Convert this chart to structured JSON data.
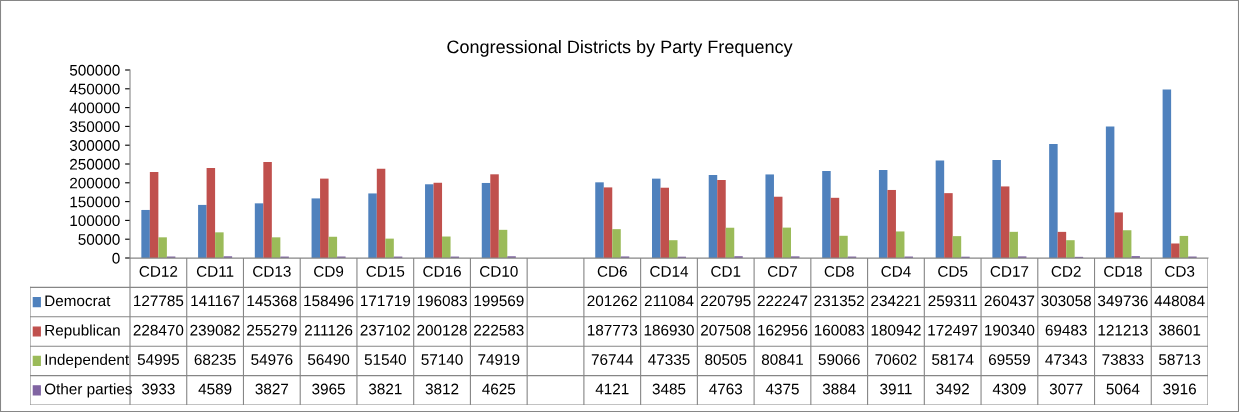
{
  "chart_data": {
    "type": "bar",
    "title": "Congressional Districts by Party Frequency",
    "categories": [
      "CD12",
      "CD11",
      "CD13",
      "CD9",
      "CD15",
      "CD16",
      "CD10",
      null,
      "CD6",
      "CD14",
      "CD1",
      "CD7",
      "CD8",
      "CD4",
      "CD5",
      "CD17",
      "CD2",
      "CD18",
      "CD3"
    ],
    "series": [
      {
        "name": "Democrat",
        "color": "#4f81bd",
        "values": [
          127785,
          141167,
          145368,
          158496,
          171719,
          196083,
          199569,
          null,
          201262,
          211084,
          220795,
          222247,
          231352,
          234221,
          259311,
          260437,
          303058,
          349736,
          448084
        ]
      },
      {
        "name": "Republican",
        "color": "#c0504d",
        "values": [
          228470,
          239082,
          255279,
          211126,
          237102,
          200128,
          222583,
          null,
          187773,
          186930,
          207508,
          162956,
          160083,
          180942,
          172497,
          190340,
          69483,
          121213,
          38601
        ]
      },
      {
        "name": "Independent",
        "color": "#9bbb59",
        "values": [
          54995,
          68235,
          54976,
          56490,
          51540,
          57140,
          74919,
          null,
          76744,
          47335,
          80505,
          80841,
          59066,
          70602,
          58174,
          69559,
          47343,
          73833,
          58713
        ]
      },
      {
        "name": "Other parties",
        "color": "#8064a2",
        "values": [
          3933,
          4589,
          3827,
          3965,
          3821,
          3812,
          4625,
          null,
          4121,
          3485,
          4763,
          4375,
          3884,
          3911,
          3492,
          4309,
          3077,
          5064,
          3916
        ]
      }
    ],
    "ylim": [
      0,
      500000
    ],
    "yticks": [
      0,
      50000,
      100000,
      150000,
      200000,
      250000,
      300000,
      350000,
      400000,
      450000,
      500000
    ],
    "grid": false,
    "legend": "left",
    "data_labels": true
  }
}
